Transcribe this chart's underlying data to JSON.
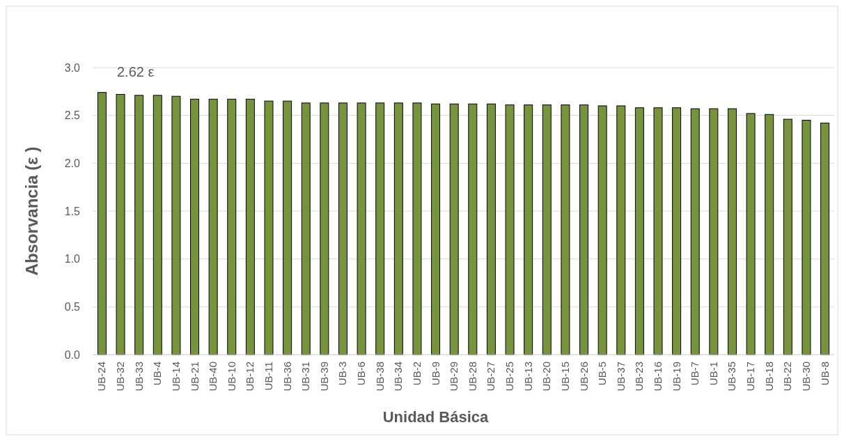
{
  "chart_data": {
    "type": "bar",
    "xlabel": "Unidad Básica",
    "ylabel": "Absorvancia (ε )",
    "annotations": [
      "2.62 ε"
    ],
    "categories": [
      "UB-24",
      "UB-32",
      "UB-33",
      "UB-4",
      "UB-14",
      "UB-21",
      "UB-40",
      "UB-10",
      "UB-12",
      "UB-11",
      "UB-36",
      "UB-31",
      "UB-39",
      "UB-3",
      "UB-6",
      "UB-38",
      "UB-34",
      "UB-2",
      "UB-9",
      "UB-29",
      "UB-28",
      "UB-27",
      "UB-25",
      "UB-13",
      "UB-20",
      "UB-15",
      "UB-26",
      "UB-5",
      "UB-37",
      "UB-23",
      "UB-16",
      "UB-19",
      "UB-7",
      "UB-1",
      "UB-35",
      "UB-17",
      "UB-18",
      "UB-22",
      "UB-30",
      "UB-8"
    ],
    "values": [
      2.74,
      2.72,
      2.71,
      2.71,
      2.7,
      2.67,
      2.67,
      2.67,
      2.67,
      2.65,
      2.65,
      2.63,
      2.63,
      2.63,
      2.63,
      2.63,
      2.63,
      2.63,
      2.62,
      2.62,
      2.62,
      2.62,
      2.61,
      2.61,
      2.61,
      2.61,
      2.61,
      2.6,
      2.6,
      2.58,
      2.58,
      2.58,
      2.57,
      2.57,
      2.57,
      2.52,
      2.51,
      2.46,
      2.45,
      2.42
    ],
    "color": "#77933c",
    "ylim": [
      0,
      3
    ],
    "yticks": [
      {
        "value": 0,
        "label": "0.0"
      },
      {
        "value": 0.5,
        "label": "0.5"
      },
      {
        "value": 1,
        "label": "1.0"
      },
      {
        "value": 1.5,
        "label": "1.5"
      },
      {
        "value": 2,
        "label": "2.0"
      },
      {
        "value": 2.5,
        "label": "2.5"
      },
      {
        "value": 3,
        "label": "3.0"
      }
    ],
    "grid": "y"
  }
}
